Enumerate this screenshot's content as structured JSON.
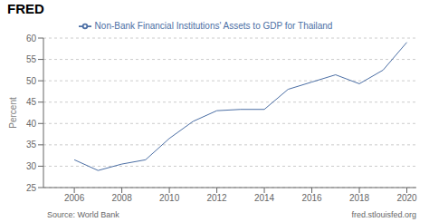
{
  "chart_data": {
    "type": "line",
    "title": "FRED",
    "ylabel": "Percent",
    "x": [
      2006,
      2007,
      2008,
      2009,
      2010,
      2011,
      2012,
      2013,
      2014,
      2015,
      2016,
      2017,
      2018,
      2019,
      2020
    ],
    "series": [
      {
        "name": "Non-Bank Financial Institutions' Assets to GDP for Thailand",
        "color": "#4c6fa5",
        "values": [
          31.5,
          29.0,
          30.5,
          31.5,
          36.5,
          40.5,
          43.0,
          43.3,
          43.3,
          48.0,
          49.7,
          51.4,
          49.3,
          52.5,
          59.0
        ]
      }
    ],
    "xlim": [
      2004.7,
      2020.4
    ],
    "xticks": [
      2006,
      2008,
      2010,
      2012,
      2014,
      2016,
      2018,
      2020
    ],
    "ylim": [
      25,
      60
    ],
    "yticks": [
      25,
      30,
      35,
      40,
      45,
      50,
      55,
      60
    ],
    "grid": true,
    "legend": "top",
    "annotations": [
      "Source: World Bank",
      "fred.stlouisfed.org"
    ]
  }
}
